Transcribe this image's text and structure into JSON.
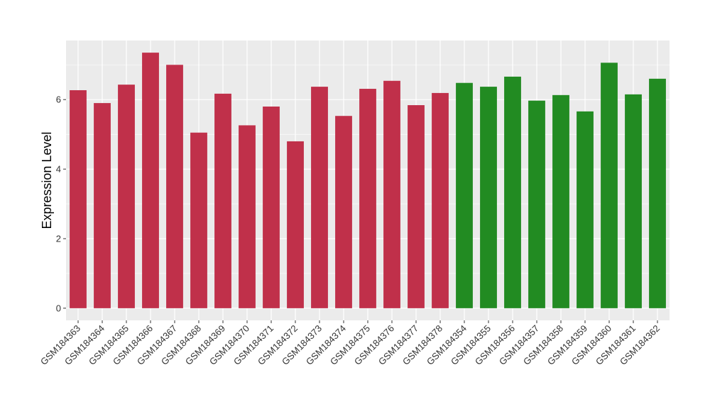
{
  "chart_data": {
    "type": "bar",
    "title": "",
    "xlabel": "",
    "ylabel": "Expression Level",
    "ylim": [
      -0.35,
      7.7
    ],
    "yticks": [
      0,
      2,
      4,
      6
    ],
    "grid": true,
    "legend": "none",
    "colors": {
      "group1": "#C0304A",
      "group2": "#228B22",
      "panel": "#EBEBEB",
      "grid": "#FFFFFF"
    },
    "categories": [
      "GSM184363",
      "GSM184364",
      "GSM184365",
      "GSM184366",
      "GSM184367",
      "GSM184368",
      "GSM184369",
      "GSM184370",
      "GSM184371",
      "GSM184372",
      "GSM184373",
      "GSM184374",
      "GSM184375",
      "GSM184376",
      "GSM184377",
      "GSM184378",
      "GSM184354",
      "GSM184355",
      "GSM184356",
      "GSM184357",
      "GSM184358",
      "GSM184359",
      "GSM184360",
      "GSM184361",
      "GSM184362"
    ],
    "values": [
      6.27,
      5.9,
      6.43,
      7.35,
      7.0,
      5.05,
      6.17,
      5.26,
      5.8,
      4.8,
      6.37,
      5.53,
      6.31,
      6.54,
      5.84,
      6.19,
      6.48,
      6.37,
      6.66,
      5.97,
      6.13,
      5.66,
      7.06,
      6.15,
      6.6
    ],
    "groups": [
      1,
      1,
      1,
      1,
      1,
      1,
      1,
      1,
      1,
      1,
      1,
      1,
      1,
      1,
      1,
      1,
      2,
      2,
      2,
      2,
      2,
      2,
      2,
      2,
      2
    ]
  }
}
